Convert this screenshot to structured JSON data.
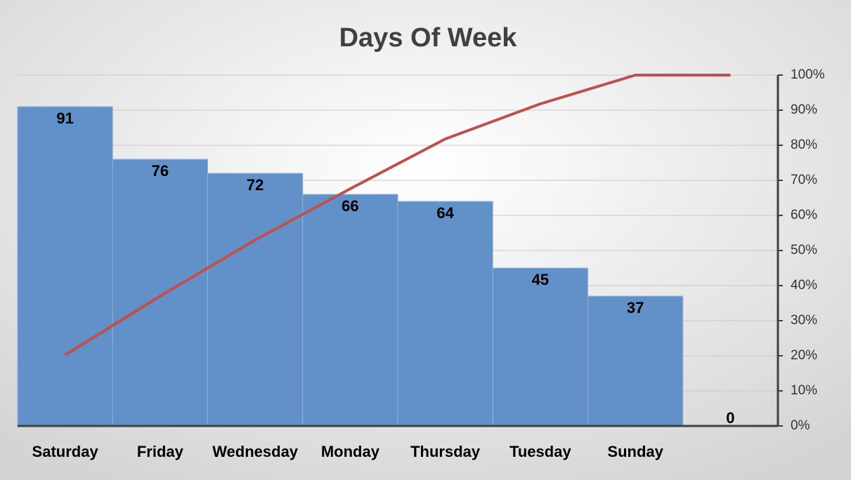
{
  "chart_data": {
    "type": "pareto",
    "title": "Days Of Week",
    "categories": [
      "Saturday",
      "Friday",
      "Wednesday",
      "Monday",
      "Thursday",
      "Tuesday",
      "Sunday",
      null
    ],
    "series": [
      {
        "type": "bar",
        "color": "#6290c8",
        "values": [
          91,
          76,
          72,
          66,
          64,
          45,
          37,
          0
        ]
      },
      {
        "type": "line",
        "axis": "y2",
        "color": "#c0504d",
        "values": [
          20.2,
          37.0,
          53.0,
          67.6,
          81.8,
          91.8,
          100,
          100
        ]
      }
    ],
    "ylim": [
      0,
      100
    ],
    "y2lim": [
      0,
      100
    ],
    "y2ticks": [
      {
        "value": 0,
        "label": "0%"
      },
      {
        "value": 10,
        "label": "10%"
      },
      {
        "value": 20,
        "label": "20%"
      },
      {
        "value": 30,
        "label": "30%"
      },
      {
        "value": 40,
        "label": "40%"
      },
      {
        "value": 50,
        "label": "50%"
      },
      {
        "value": 60,
        "label": "60%"
      },
      {
        "value": 70,
        "label": "70%"
      },
      {
        "value": 80,
        "label": "80%"
      },
      {
        "value": 90,
        "label": "90%"
      },
      {
        "value": 100,
        "label": "100%"
      }
    ],
    "grid": true
  }
}
